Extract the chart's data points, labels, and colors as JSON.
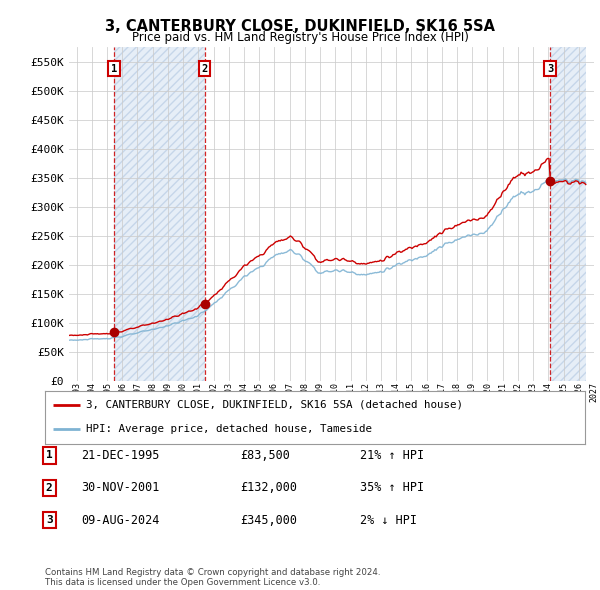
{
  "title": "3, CANTERBURY CLOSE, DUKINFIELD, SK16 5SA",
  "subtitle": "Price paid vs. HM Land Registry's House Price Index (HPI)",
  "ylim": [
    0,
    575000
  ],
  "yticks": [
    0,
    50000,
    100000,
    150000,
    200000,
    250000,
    300000,
    350000,
    400000,
    450000,
    500000,
    550000
  ],
  "ytick_labels": [
    "£0",
    "£50K",
    "£100K",
    "£150K",
    "£200K",
    "£250K",
    "£300K",
    "£350K",
    "£400K",
    "£450K",
    "£500K",
    "£550K"
  ],
  "x_start_year": 1993,
  "x_end_year": 2027,
  "sale_prices": [
    83500,
    132000,
    345000
  ],
  "sale_years": [
    1995.97,
    2001.92,
    2024.61
  ],
  "legend_property": "3, CANTERBURY CLOSE, DUKINFIELD, SK16 5SA (detached house)",
  "legend_hpi": "HPI: Average price, detached house, Tameside",
  "table_rows": [
    {
      "num": "1",
      "date": "21-DEC-1995",
      "price": "£83,500",
      "hpi": "21% ↑ HPI"
    },
    {
      "num": "2",
      "date": "30-NOV-2001",
      "price": "£132,000",
      "hpi": "35% ↑ HPI"
    },
    {
      "num": "3",
      "date": "09-AUG-2024",
      "price": "£345,000",
      "hpi": "2% ↓ HPI"
    }
  ],
  "footnote1": "Contains HM Land Registry data © Crown copyright and database right 2024.",
  "footnote2": "This data is licensed under the Open Government Licence v3.0.",
  "property_line_color": "#cc0000",
  "hpi_line_color": "#7fb3d3",
  "background_color": "#ffffff",
  "grid_color": "#cccccc",
  "sale_marker_color": "#aa0000",
  "vline_color": "#cc0000",
  "hatch_fill_color": "#dce8f5",
  "hatch_edge_color": "#b8cce4"
}
